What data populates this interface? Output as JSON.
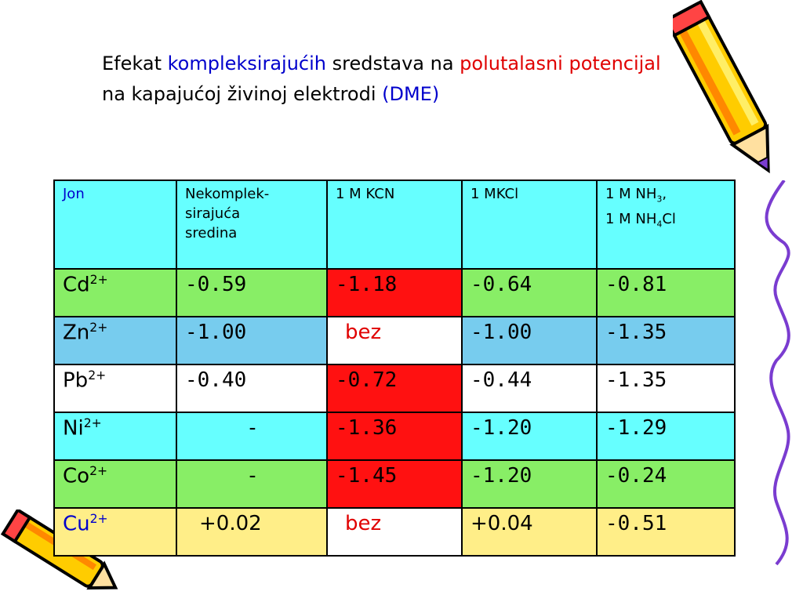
{
  "title": {
    "part1": "Efekat ",
    "part2": "kompleksirajućih",
    "part3": " sredstava na ",
    "part4": "polutalasni potencijal",
    "part5": " na kapajućoj živinoj elektrodi ",
    "part6": "(DME)"
  },
  "colors": {
    "header": "#66ffff",
    "green": "#88ee66",
    "blue": "#77ccee",
    "red": "#ff1111",
    "yellow": "#ffee88"
  },
  "table": {
    "headers": {
      "jon": "Jon",
      "nekompleks_line1": "Nekomplek-",
      "nekompleks_line2": "sirajuća",
      "nekompleks_line3": "sredina",
      "kcn": "1 M KCN",
      "kcl": "1 MKCl",
      "nh3_a": "1 M NH",
      "nh3_sub": "3",
      "nh3_b": ",",
      "nh4_a": "1 M NH",
      "nh4_sub": "4",
      "nh4_b": "Cl"
    },
    "rows": [
      {
        "ion": "Cd",
        "charge": "2+",
        "v1": "-0.59",
        "v2": "-1.18",
        "v3": "-0.64",
        "v4": "-0.81"
      },
      {
        "ion": "Zn",
        "charge": "2+",
        "v1": "-1.00",
        "v2": "bez",
        "v3": "-1.00",
        "v4": "-1.35"
      },
      {
        "ion": "Pb",
        "charge": "2+",
        "v1": "-0.40",
        "v2": "-0.72",
        "v3": "-0.44",
        "v4": "-1.35"
      },
      {
        "ion": "Ni",
        "charge": "2+",
        "v1": "-",
        "v2": "-1.36",
        "v3": "-1.20",
        "v4": "-1.29"
      },
      {
        "ion": "Co",
        "charge": "2+",
        "v1": "-",
        "v2": "-1.45",
        "v3": "-1.20",
        "v4": "-0.24"
      },
      {
        "ion": "Cu",
        "charge": "2+",
        "v1": "+0.02",
        "v2": "bez",
        "v3": "+0.04",
        "v4": "-0.51"
      }
    ]
  }
}
